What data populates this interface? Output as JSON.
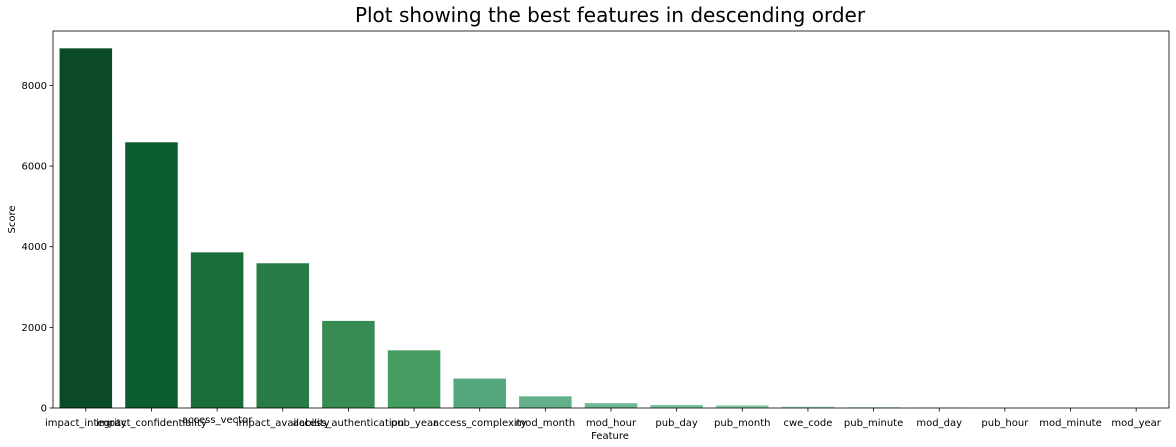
{
  "chart_data": {
    "type": "bar",
    "title": "Plot showing the best features in descending order",
    "xlabel": "Feature",
    "ylabel": "Score",
    "ylim": [
      0,
      9350
    ],
    "yticks": [
      0,
      2000,
      4000,
      6000,
      8000
    ],
    "grid": false,
    "categories": [
      "impact_integrity",
      "impact_confidentiality",
      "access_vector",
      "impact_availability",
      "access_authentication",
      "pub_year",
      "access_complexity",
      "mod_month",
      "mod_hour",
      "pub_day",
      "pub_month",
      "cwe_code",
      "pub_minute",
      "mod_day",
      "pub_hour",
      "mod_minute",
      "mod_year"
    ],
    "values": [
      8920,
      6590,
      3860,
      3590,
      2160,
      1430,
      730,
      290,
      120,
      75,
      65,
      30,
      20,
      12,
      8,
      5,
      3
    ],
    "colors": [
      "#0b4a27",
      "#0b5c2e",
      "#1a6d39",
      "#277b45",
      "#388c53",
      "#449c61",
      "#53a77a",
      "#61b08a",
      "#6dba95",
      "#7bc39f",
      "#87cca9",
      "#96d4b5",
      "#a3dcbf",
      "#b2e3ca",
      "#c0ead5",
      "#cff0de",
      "#ddf5e8"
    ]
  }
}
